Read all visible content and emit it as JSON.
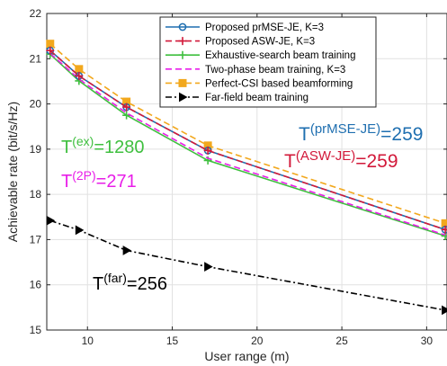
{
  "chart_data": {
    "type": "line",
    "title": "",
    "xlabel": "User range (m)",
    "ylabel": "Achievable rate (bit/s/Hz)",
    "xlim": [
      7.6,
      31.2
    ],
    "ylim": [
      15,
      22
    ],
    "xticks": [
      10,
      15,
      20,
      25,
      30
    ],
    "yticks": [
      15,
      16,
      17,
      18,
      19,
      20,
      21,
      22
    ],
    "x_tick_labels": [
      "10",
      "15",
      "20",
      "25",
      "30"
    ],
    "y_tick_labels": [
      "15",
      "16",
      "17",
      "18",
      "19",
      "20",
      "21",
      "22"
    ],
    "grid": true,
    "legend_position": "top",
    "x": [
      7.8,
      9.5,
      12.3,
      17.1,
      31.1
    ],
    "series": [
      {
        "name": "Proposed prMSE-JE, K=3",
        "values": [
          21.18,
          20.62,
          19.93,
          18.97,
          17.22
        ],
        "color": "#1f6fb0",
        "dash": "solid",
        "marker": "circle"
      },
      {
        "name": "Proposed ASW-JE, K=3",
        "values": [
          21.18,
          20.62,
          19.93,
          18.97,
          17.22
        ],
        "color": "#d2193a",
        "dash": "dashed",
        "marker": "plus"
      },
      {
        "name": "Exhaustive-search beam training",
        "values": [
          21.1,
          20.51,
          19.75,
          18.75,
          17.08
        ],
        "color": "#3fbf3f",
        "dash": "solid",
        "marker": "plus"
      },
      {
        "name": "Two-phase beam training, K=3",
        "values": [
          21.12,
          20.55,
          19.8,
          18.8,
          17.1
        ],
        "color": "#e81ee8",
        "dash": "dashed",
        "marker": "none"
      },
      {
        "name": "Perfect-CSI based beamforming",
        "values": [
          21.33,
          20.77,
          20.05,
          19.08,
          17.36
        ],
        "color": "#f2a81d",
        "dash": "dashed",
        "marker": "square"
      },
      {
        "name": "Far-field beam training",
        "values": [
          17.42,
          17.21,
          16.76,
          16.4,
          15.44
        ],
        "color": "#000000",
        "dash": "dashdot",
        "marker": "triangle-right"
      }
    ],
    "annotations": [
      {
        "base": "T",
        "sup": "(prMSE-JE)",
        "rest": "=259",
        "color": "#1f6fb0"
      },
      {
        "base": "T",
        "sup": "(ASW-JE)",
        "rest": "=259",
        "color": "#d2193a"
      },
      {
        "base": "T",
        "sup": "(ex)",
        "rest": "=1280",
        "color": "#3fbf3f"
      },
      {
        "base": "T",
        "sup": "(2P)",
        "rest": "=271",
        "color": "#e81ee8"
      },
      {
        "base": "T",
        "sup": "(far)",
        "rest": "=256",
        "color": "#000000"
      }
    ]
  }
}
